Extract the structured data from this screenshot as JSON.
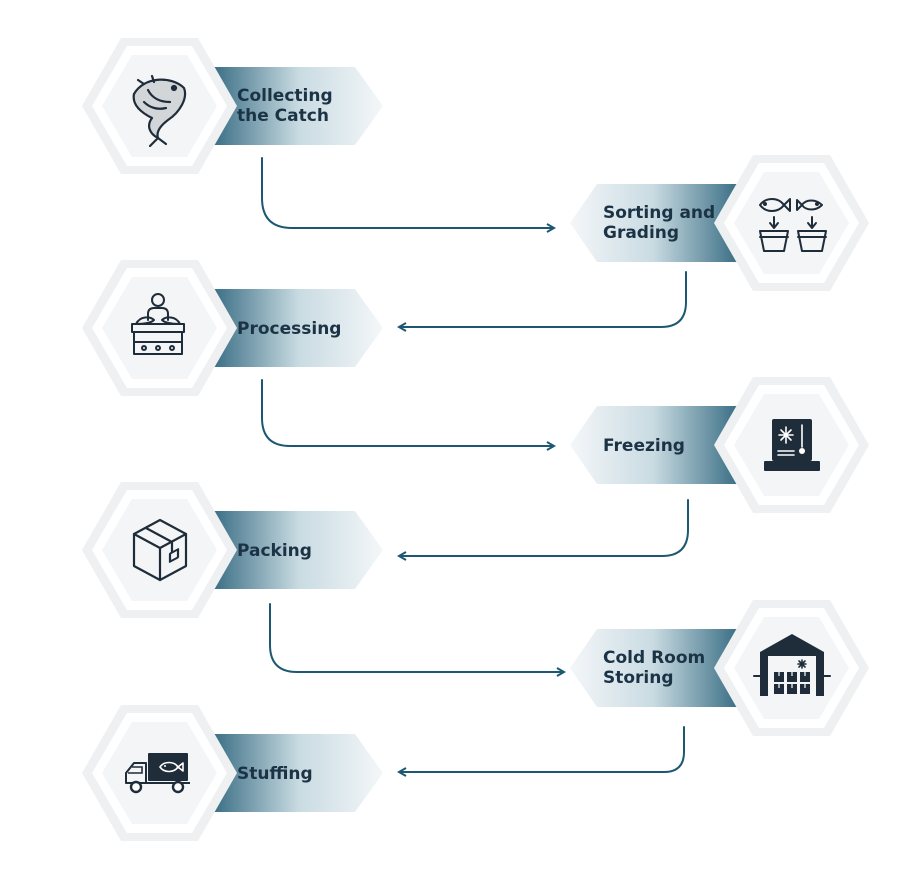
{
  "steps": [
    {
      "id": "collecting",
      "label": "Collecting\nthe Catch",
      "icon": "fish-icon"
    },
    {
      "id": "sorting",
      "label": "Sorting and\nGrading",
      "icon": "fish-sorting-icon"
    },
    {
      "id": "processing",
      "label": "Processing",
      "icon": "conveyor-worker-icon"
    },
    {
      "id": "freezing",
      "label": "Freezing",
      "icon": "freezer-thermometer-icon"
    },
    {
      "id": "packing",
      "label": "Packing",
      "icon": "cardboard-box-icon"
    },
    {
      "id": "cold-room",
      "label": "Cold Room\nStoring",
      "icon": "cold-storage-warehouse-icon"
    },
    {
      "id": "stuffing",
      "label": "Stuffing",
      "icon": "delivery-truck-icon"
    }
  ],
  "colors": {
    "banner_dark": "#1d5872",
    "banner_light": "#f2f6f8",
    "label": "#1c3346",
    "connector": "#1d5872",
    "hex_outer": "#eef0f1",
    "hex_inner": "#f4f5f6",
    "icon": "#1f2d3a"
  }
}
